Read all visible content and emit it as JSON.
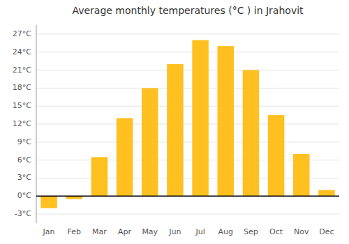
{
  "chart_data": {
    "type": "bar",
    "title": "Average monthly temperatures (°C ) in Jrahovit",
    "categories": [
      "Jan",
      "Feb",
      "Mar",
      "Apr",
      "May",
      "Jun",
      "Jul",
      "Aug",
      "Sep",
      "Oct",
      "Nov",
      "Dec"
    ],
    "values": [
      -2.0,
      -0.5,
      6.5,
      13.0,
      18.0,
      22.0,
      26.0,
      25.0,
      21.0,
      13.5,
      7.0,
      1.0
    ],
    "color": "#FFC020",
    "ylim": [
      -4.5,
      28.5
    ],
    "yticks": [
      {
        "value": -3,
        "label": "-3°C"
      },
      {
        "value": 0,
        "label": "0°C"
      },
      {
        "value": 3,
        "label": "3°C"
      },
      {
        "value": 6,
        "label": "6°C"
      },
      {
        "value": 9,
        "label": "9°C"
      },
      {
        "value": 12,
        "label": "12°C"
      },
      {
        "value": 15,
        "label": "15°C"
      },
      {
        "value": 18,
        "label": "18°C"
      },
      {
        "value": 21,
        "label": "21°C"
      },
      {
        "value": 24,
        "label": "24°C"
      },
      {
        "value": 27,
        "label": "27°C"
      }
    ],
    "grid": true
  }
}
